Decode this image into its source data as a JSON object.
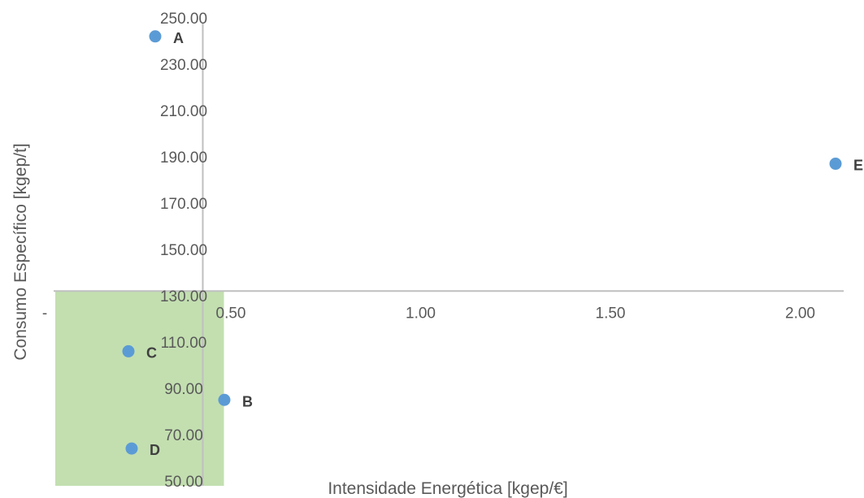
{
  "chart_data": {
    "type": "scatter",
    "title": "",
    "xlabel": "Intensidade Energética [kgep/€]",
    "ylabel": "Consumo Específico [kgep/t]",
    "xlim": [
      0,
      2.1
    ],
    "ylim": [
      50,
      250
    ],
    "x_crosses_y_at": 132,
    "y_crosses_x_at": 0.5,
    "x_ticks": [
      {
        "value": 0,
        "label": "-"
      },
      {
        "value": 0.5,
        "label": "0.50"
      },
      {
        "value": 1.0,
        "label": "1.00"
      },
      {
        "value": 1.5,
        "label": "1.50"
      },
      {
        "value": 2.0,
        "label": "2.00"
      }
    ],
    "y_ticks": [
      {
        "value": 50,
        "label": "50.00"
      },
      {
        "value": 70,
        "label": "70.00"
      },
      {
        "value": 90,
        "label": "90.00"
      },
      {
        "value": 110,
        "label": "110.00"
      },
      {
        "value": 130,
        "label": "130.00"
      },
      {
        "value": 150,
        "label": "150.00"
      },
      {
        "value": 170,
        "label": "170.00"
      },
      {
        "value": 190,
        "label": "190.00"
      },
      {
        "value": 210,
        "label": "210.00"
      },
      {
        "value": 230,
        "label": "230.00"
      },
      {
        "value": 250,
        "label": "250.00"
      }
    ],
    "points": [
      {
        "label": "A",
        "x": 0.05,
        "y": 242
      },
      {
        "label": "B",
        "x": 0.52,
        "y": 85
      },
      {
        "label": "C",
        "x": 0.04,
        "y": 106
      },
      {
        "label": "D",
        "x": 0.05,
        "y": 64
      },
      {
        "label": "E",
        "x": 2.08,
        "y": 187
      }
    ],
    "highlight_region": {
      "x_range": [
        0,
        0.5
      ],
      "y_range": [
        50,
        132
      ],
      "color": "#a9d18e"
    },
    "colors": {
      "point": "#5b9bd5",
      "axis": "#bfbfbf",
      "tick_text": "#595959",
      "label_text": "#404040"
    },
    "grid": false,
    "legend": "none"
  }
}
